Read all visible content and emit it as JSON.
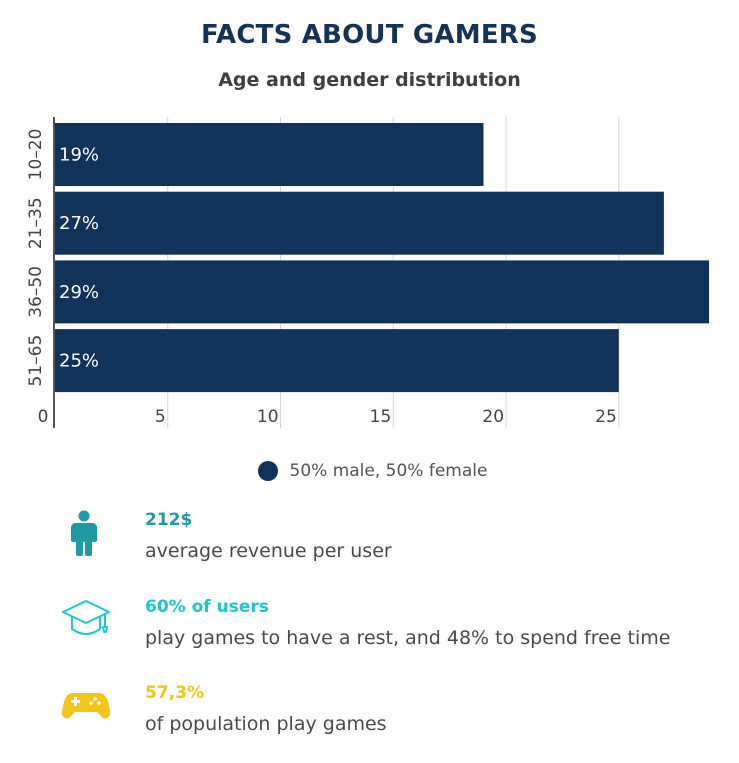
{
  "title": "FACTS ABOUT GAMERS",
  "subtitle": "Age and gender distribution",
  "chart_data": {
    "type": "bar",
    "orientation": "horizontal",
    "categories": [
      "10–20",
      "21–35",
      "36–50",
      "51–65"
    ],
    "values": [
      19,
      27,
      29,
      25
    ],
    "value_labels": [
      "19%",
      "27%",
      "29%",
      "25%"
    ],
    "x_ticks": [
      "0",
      "5",
      "10",
      "15",
      "20",
      "25"
    ],
    "xlim": [
      0,
      29
    ],
    "grid": "vertical",
    "bar_color": "#11335a",
    "legend": {
      "placement": "bottom-center",
      "label": "50% male, 50% female"
    }
  },
  "facts": [
    {
      "icon": "person-icon",
      "value": "212$",
      "text": "average revenue per user",
      "color": "#1e9aa2"
    },
    {
      "icon": "graduation-cap-icon",
      "value": "60% of users",
      "text": "play games to have a rest, and 48% to spend free time",
      "color": "#1fc6cf"
    },
    {
      "icon": "gamepad-icon",
      "value": "57,3%",
      "text": "of population play games",
      "color": "#f2c518"
    }
  ]
}
